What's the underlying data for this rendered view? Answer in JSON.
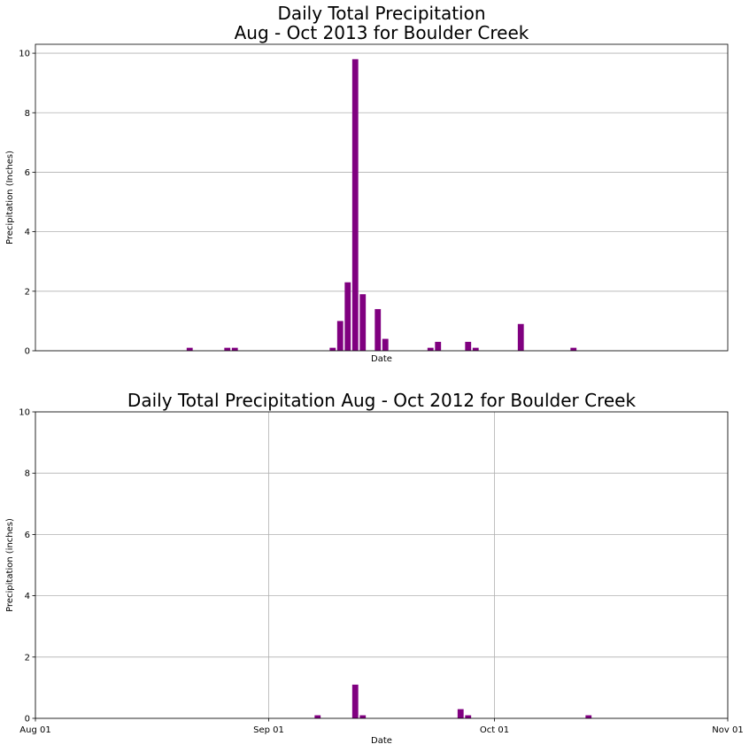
{
  "chart_data": [
    {
      "type": "bar",
      "title_lines": [
        "Daily Total Precipitation",
        "Aug - Oct 2013 for Boulder Creek"
      ],
      "xlabel": "Date",
      "ylabel": "Precipitation (Inches)",
      "xlim": [
        "2013-08-01",
        "2013-11-01"
      ],
      "ylim": [
        0,
        10.3
      ],
      "yticks": [
        0,
        2,
        4,
        6,
        8,
        10
      ],
      "xticks": [],
      "grid": "y",
      "bar_color": "#800080",
      "points": [
        {
          "x": "2013-08-21",
          "y": 0.1
        },
        {
          "x": "2013-08-26",
          "y": 0.1
        },
        {
          "x": "2013-08-27",
          "y": 0.1
        },
        {
          "x": "2013-09-09",
          "y": 0.1
        },
        {
          "x": "2013-09-10",
          "y": 1.0
        },
        {
          "x": "2013-09-11",
          "y": 2.3
        },
        {
          "x": "2013-09-12",
          "y": 9.8
        },
        {
          "x": "2013-09-13",
          "y": 1.9
        },
        {
          "x": "2013-09-15",
          "y": 1.4
        },
        {
          "x": "2013-09-16",
          "y": 0.4
        },
        {
          "x": "2013-09-22",
          "y": 0.1
        },
        {
          "x": "2013-09-23",
          "y": 0.3
        },
        {
          "x": "2013-09-27",
          "y": 0.3
        },
        {
          "x": "2013-09-28",
          "y": 0.1
        },
        {
          "x": "2013-10-04",
          "y": 0.9
        },
        {
          "x": "2013-10-11",
          "y": 0.1
        }
      ]
    },
    {
      "type": "bar",
      "title_lines": [
        "Daily Total Precipitation Aug - Oct 2012 for Boulder Creek"
      ],
      "xlabel": "Date",
      "ylabel": "Precipitation (inches)",
      "xlim": [
        "2012-08-01",
        "2012-11-01"
      ],
      "ylim": [
        0,
        10
      ],
      "yticks": [
        0,
        2,
        4,
        6,
        8,
        10
      ],
      "xticks": [
        {
          "x": "2012-08-01",
          "label": "Aug 01"
        },
        {
          "x": "2012-09-01",
          "label": "Sep 01"
        },
        {
          "x": "2012-10-01",
          "label": "Oct 01"
        },
        {
          "x": "2012-11-01",
          "label": "Nov 01"
        }
      ],
      "grid": "both",
      "bar_color": "#800080",
      "points": [
        {
          "x": "2012-09-07",
          "y": 0.1
        },
        {
          "x": "2012-09-12",
          "y": 1.1
        },
        {
          "x": "2012-09-13",
          "y": 0.1
        },
        {
          "x": "2012-09-26",
          "y": 0.3
        },
        {
          "x": "2012-09-27",
          "y": 0.1
        },
        {
          "x": "2012-10-13",
          "y": 0.1
        }
      ]
    }
  ]
}
